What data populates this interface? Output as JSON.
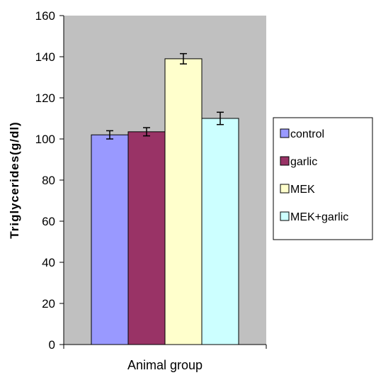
{
  "chart_data": {
    "type": "bar",
    "title": "",
    "xlabel": "Animal group",
    "ylabel": "Triglycerides(g/dl)",
    "ylim": [
      0,
      160
    ],
    "yticks": [
      0,
      20,
      40,
      60,
      80,
      100,
      120,
      140,
      160
    ],
    "grid": false,
    "legend_position": "right",
    "categories": [
      ""
    ],
    "series": [
      {
        "name": "control",
        "values": [
          102
        ],
        "error": [
          2
        ],
        "color": "#9999ff"
      },
      {
        "name": "garlic",
        "values": [
          103.5
        ],
        "error": [
          2
        ],
        "color": "#993366"
      },
      {
        "name": "MEK",
        "values": [
          139
        ],
        "error": [
          2.5
        ],
        "color": "#ffffcc"
      },
      {
        "name": "MEK+garlic",
        "values": [
          110
        ],
        "error": [
          3
        ],
        "color": "#ccffff"
      }
    ],
    "plot_background": "#c0c0c0"
  }
}
